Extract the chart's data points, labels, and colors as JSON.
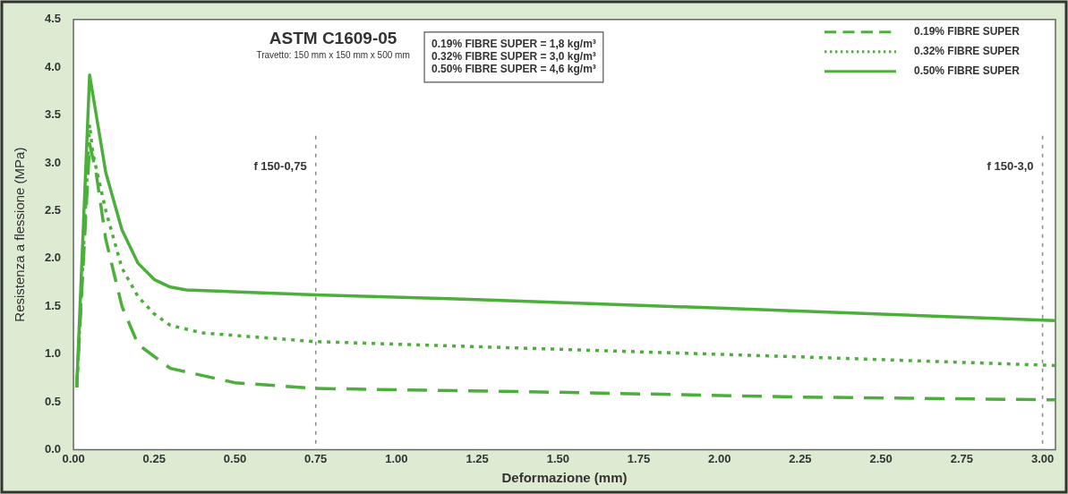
{
  "chart_data": {
    "type": "line",
    "title": "ASTM C1609-05",
    "subtitle": "Travetto: 150 mm x 150 mm x 500 mm",
    "xlabel": "Deformazione (mm)",
    "ylabel": "Resistenza a flessione (MPa)",
    "xlim": [
      0,
      3.04
    ],
    "xticks": [
      {
        "value": 0,
        "label": "0.00"
      },
      0.25,
      {
        "value": 0.5,
        "label": "0.50"
      },
      0.75,
      {
        "value": 1,
        "label": "1.00"
      },
      1.25,
      {
        "value": 1.5,
        "label": "1.50"
      },
      1.75,
      {
        "value": 2,
        "label": "2.00"
      },
      2.25,
      {
        "value": 2.5,
        "label": "2.50"
      },
      2.75,
      {
        "value": 3,
        "label": "3.00"
      }
    ],
    "ylim": [
      0,
      4.5
    ],
    "yticks": [
      {
        "value": 0,
        "label": "0.0"
      },
      0.5,
      {
        "value": 1,
        "label": "1.0"
      },
      1.5,
      {
        "value": 2,
        "label": "2.0"
      },
      2.5,
      {
        "value": 3,
        "label": "3.0"
      },
      3.5,
      {
        "value": 4,
        "label": "4.0"
      },
      4.5
    ],
    "grid": false,
    "legend": "top right",
    "marker": "none",
    "series": [
      {
        "name": "0.19% FIBRE SUPER",
        "color": "#4caf3c",
        "line_style": "dashed",
        "x": [
          0.01,
          0.05,
          0.07,
          0.1,
          0.15,
          0.2,
          0.3,
          0.5,
          0.75,
          1.5,
          2.25,
          3.04
        ],
        "values": [
          0.65,
          3.2,
          2.9,
          2.2,
          1.5,
          1.1,
          0.85,
          0.7,
          0.64,
          0.6,
          0.55,
          0.52
        ]
      },
      {
        "name": "0.32% FIBRE SUPER",
        "color": "#4caf3c",
        "line_style": "dotted",
        "x": [
          0.01,
          0.05,
          0.06,
          0.1,
          0.15,
          0.2,
          0.25,
          0.3,
          0.4,
          0.75,
          1.5,
          2.25,
          3.04
        ],
        "values": [
          0.65,
          3.4,
          3.1,
          2.5,
          1.9,
          1.6,
          1.42,
          1.3,
          1.22,
          1.13,
          1.05,
          0.97,
          0.88
        ]
      },
      {
        "name": "0.50% FIBRE SUPER",
        "color": "#4caf3c",
        "line_style": "solid",
        "x": [
          0.01,
          0.05,
          0.1,
          0.15,
          0.2,
          0.25,
          0.3,
          0.35,
          0.75,
          1.25,
          2.0,
          3.04
        ],
        "values": [
          0.65,
          3.92,
          2.9,
          2.3,
          1.95,
          1.78,
          1.7,
          1.67,
          1.62,
          1.57,
          1.48,
          1.35
        ]
      }
    ],
    "ref_lines": [
      {
        "axis": "x",
        "value": 0.75,
        "label": "f 150-0,75",
        "color": "#888888",
        "line_style": "dotted"
      },
      {
        "axis": "x",
        "value": 3.0,
        "label": "f 150-3,0",
        "color": "#888888",
        "line_style": "dotted"
      }
    ],
    "annotations": [
      "0.19% FIBRE SUPER = 1,8 kg/m³",
      "0.32% FIBRE SUPER = 3,0 kg/m³",
      "0.50% FIBRE SUPER = 4,6 kg/m³"
    ]
  }
}
